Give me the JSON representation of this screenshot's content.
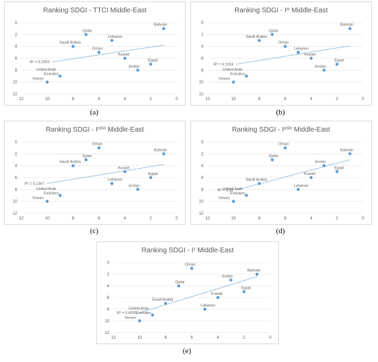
{
  "colors": {
    "marker": "#5b9bd5",
    "trend": "#2e75b6",
    "grid": "#d9d9d9",
    "text": "#595959"
  },
  "chart_data": [
    {
      "type": "scatter",
      "panel": "a",
      "caption": "(a)",
      "title": "Ranking SDGI - TTCI Middle-East",
      "title_parts": [
        {
          "t": "Ranking SDGI - TTCI Middle-East",
          "sup": false
        }
      ],
      "xlim": [
        12,
        0
      ],
      "ylim": [
        12,
        0
      ],
      "xticks": [
        "12",
        "10",
        "8",
        "6",
        "4",
        "2",
        "0"
      ],
      "yticks": [
        "0",
        "2",
        "4",
        "6",
        "8",
        "10",
        "12"
      ],
      "r2": "R² = 0,1552",
      "trend": {
        "x1": 9.6,
        "y1": 6.6,
        "x2": 1.0,
        "y2": 3.8
      },
      "points": [
        {
          "label": "Bahrain",
          "x": 1,
          "y": 1
        },
        {
          "label": "Qatar",
          "x": 7,
          "y": 2
        },
        {
          "label": "Lebanon",
          "x": 5,
          "y": 3
        },
        {
          "label": "Saudi Arabia",
          "x": 8,
          "y": 4
        },
        {
          "label": "Oman",
          "x": 6,
          "y": 5
        },
        {
          "label": "Kuwait",
          "x": 4,
          "y": 6
        },
        {
          "label": "Egypt",
          "x": 2,
          "y": 7
        },
        {
          "label": "Jordan",
          "x": 3,
          "y": 8
        },
        {
          "label": "United Arab Emirates",
          "x": 9,
          "y": 9
        },
        {
          "label": "Yemen",
          "x": 10,
          "y": 10
        }
      ]
    },
    {
      "type": "scatter",
      "panel": "b",
      "caption": "(b)",
      "title": "Ranking SDGI - Iʷ Middle-East",
      "title_parts": [
        {
          "t": "Ranking SDGI - I",
          "sup": false
        },
        {
          "t": "w",
          "sup": true
        },
        {
          "t": " Middle-East",
          "sup": false
        }
      ],
      "xlim": [
        12,
        0
      ],
      "ylim": [
        12,
        0
      ],
      "xticks": [
        "12",
        "10",
        "8",
        "6",
        "4",
        "2",
        "0"
      ],
      "yticks": [
        "0",
        "2",
        "4",
        "6",
        "8",
        "10",
        "12"
      ],
      "r2": "R² = 0,1193",
      "trend": {
        "x1": 9.8,
        "y1": 7.0,
        "x2": 1.0,
        "y2": 3.9
      },
      "points": [
        {
          "label": "Bahrain",
          "x": 1,
          "y": 1
        },
        {
          "label": "Qatar",
          "x": 7,
          "y": 2
        },
        {
          "label": "Saudi Arabia",
          "x": 8,
          "y": 3
        },
        {
          "label": "Oman",
          "x": 6,
          "y": 4
        },
        {
          "label": "Lebanon",
          "x": 5,
          "y": 5
        },
        {
          "label": "Kuwait",
          "x": 4,
          "y": 6
        },
        {
          "label": "Egypt",
          "x": 2,
          "y": 7
        },
        {
          "label": "Jordan",
          "x": 3,
          "y": 8
        },
        {
          "label": "United Arab Emirates",
          "x": 9,
          "y": 9
        },
        {
          "label": "Yemen",
          "x": 10,
          "y": 10
        }
      ]
    },
    {
      "type": "scatter",
      "panel": "c",
      "caption": "(c)",
      "title": "Ranking SDGI - Iᵐ⁵⁰ Middle-East",
      "title_parts": [
        {
          "t": "Ranking SDGI - I",
          "sup": false
        },
        {
          "t": "m50",
          "sup": true
        },
        {
          "t": " Middle-East",
          "sup": false
        }
      ],
      "xlim": [
        12,
        0
      ],
      "ylim": [
        12,
        0
      ],
      "xticks": [
        "12",
        "10",
        "8",
        "6",
        "4",
        "2",
        "0"
      ],
      "yticks": [
        "0",
        "2",
        "4",
        "6",
        "8",
        "10",
        "12"
      ],
      "r2": "R² = 0,1367",
      "trend": {
        "x1": 10.0,
        "y1": 7.0,
        "x2": 1.0,
        "y2": 3.8
      },
      "points": [
        {
          "label": "Oman",
          "x": 6,
          "y": 1
        },
        {
          "label": "Bahrain",
          "x": 1,
          "y": 2
        },
        {
          "label": "Qatar",
          "x": 7,
          "y": 3
        },
        {
          "label": "Saudi Arabia",
          "x": 8,
          "y": 4
        },
        {
          "label": "Kuwait",
          "x": 4,
          "y": 5
        },
        {
          "label": "Egypt",
          "x": 2,
          "y": 6
        },
        {
          "label": "Lebanon",
          "x": 5,
          "y": 7
        },
        {
          "label": "Jordan",
          "x": 3,
          "y": 8
        },
        {
          "label": "United Arab Emirates",
          "x": 9,
          "y": 9
        },
        {
          "label": "Yemen",
          "x": 10,
          "y": 10
        }
      ]
    },
    {
      "type": "scatter",
      "panel": "d",
      "caption": "(d)",
      "title": "Ranking SDGI - Iᵐ⁹⁰ Middle-East",
      "title_parts": [
        {
          "t": "Ranking SDGI - I",
          "sup": false
        },
        {
          "t": "m90",
          "sup": true
        },
        {
          "t": " Middle-East",
          "sup": false
        }
      ],
      "xlim": [
        12,
        0
      ],
      "ylim": [
        12,
        0
      ],
      "xticks": [
        "12",
        "10",
        "8",
        "6",
        "4",
        "2",
        "0"
      ],
      "yticks": [
        "0",
        "2",
        "4",
        "6",
        "8",
        "10",
        "12"
      ],
      "r2": "R² = 0,36",
      "trend": {
        "x1": 9.8,
        "y1": 8.1,
        "x2": 1.0,
        "y2": 3.0
      },
      "points": [
        {
          "label": "Oman",
          "x": 6,
          "y": 1
        },
        {
          "label": "Bahrain",
          "x": 1,
          "y": 2
        },
        {
          "label": "Qatar",
          "x": 7,
          "y": 3
        },
        {
          "label": "Jordan",
          "x": 3,
          "y": 4
        },
        {
          "label": "Egypt",
          "x": 2,
          "y": 5
        },
        {
          "label": "Kuwait",
          "x": 4,
          "y": 6
        },
        {
          "label": "Saudi Arabia",
          "x": 8,
          "y": 7
        },
        {
          "label": "Lebanon",
          "x": 5,
          "y": 8
        },
        {
          "label": "United Arab Emirates",
          "x": 9,
          "y": 9
        },
        {
          "label": "Yemen",
          "x": 10,
          "y": 10
        }
      ]
    },
    {
      "type": "scatter",
      "panel": "e",
      "caption": "(e)",
      "title": "Ranking SDGI - Iˢ Middle-East",
      "title_parts": [
        {
          "t": "Ranking SDGI - I",
          "sup": false
        },
        {
          "t": "s",
          "sup": true
        },
        {
          "t": " Middle-East",
          "sup": false
        }
      ],
      "xlim": [
        12,
        0
      ],
      "ylim": [
        12,
        0
      ],
      "xticks": [
        "12",
        "10",
        "8",
        "6",
        "4",
        "2",
        "0"
      ],
      "yticks": [
        "0",
        "2",
        "4",
        "6",
        "8",
        "10",
        "12"
      ],
      "r2": "R² = 0,4205",
      "trend": {
        "x1": 10.0,
        "y1": 8.6,
        "x2": 1.0,
        "y2": 2.4
      },
      "points": [
        {
          "label": "Oman",
          "x": 6,
          "y": 1
        },
        {
          "label": "Bahrain",
          "x": 1,
          "y": 2
        },
        {
          "label": "Jordan",
          "x": 3,
          "y": 3
        },
        {
          "label": "Qatar",
          "x": 7,
          "y": 4
        },
        {
          "label": "Egypt",
          "x": 2,
          "y": 5
        },
        {
          "label": "Kuwait",
          "x": 4,
          "y": 6
        },
        {
          "label": "Saudi Arabia",
          "x": 8,
          "y": 7
        },
        {
          "label": "Lebanon",
          "x": 5,
          "y": 8
        },
        {
          "label": "United Arab Emirates",
          "x": 9,
          "y": 9
        },
        {
          "label": "Yemen",
          "x": 10,
          "y": 10
        }
      ]
    }
  ]
}
